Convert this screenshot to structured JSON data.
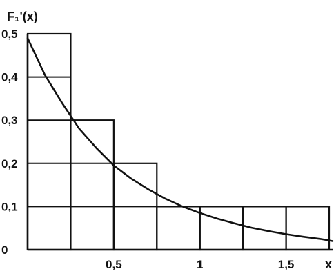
{
  "chart_data": {
    "type": "bar",
    "title": "",
    "ylabel": "F₁'(x)",
    "xlabel": "x",
    "xlim": [
      0,
      1.77
    ],
    "ylim": [
      0,
      0.5
    ],
    "x_ticks": [
      {
        "value": 0.5,
        "label": "0,5"
      },
      {
        "value": 1,
        "label": "1"
      },
      {
        "value": 1.5,
        "label": "1,5"
      }
    ],
    "y_ticks": [
      {
        "value": 0,
        "label": "0"
      },
      {
        "value": 0.1,
        "label": "0,1"
      },
      {
        "value": 0.2,
        "label": "0,2"
      },
      {
        "value": 0.3,
        "label": "0,3"
      },
      {
        "value": 0.4,
        "label": "0,4"
      },
      {
        "value": 0.5,
        "label": "0,5"
      }
    ],
    "bin_edges": [
      0,
      0.25,
      0.5,
      0.75,
      1.0,
      1.25,
      1.5,
      1.75
    ],
    "values": [
      0.5,
      0.3,
      0.2,
      0.1,
      0.1,
      0.1,
      0.1
    ],
    "curve": {
      "x": [
        0,
        0.1,
        0.2,
        0.3,
        0.4,
        0.5,
        0.6,
        0.7,
        0.8,
        0.9,
        1.0,
        1.1,
        1.2,
        1.3,
        1.4,
        1.5,
        1.6,
        1.7,
        1.77
      ],
      "y": [
        0.49,
        0.405,
        0.34,
        0.28,
        0.235,
        0.195,
        0.165,
        0.14,
        0.118,
        0.1,
        0.085,
        0.072,
        0.061,
        0.051,
        0.043,
        0.036,
        0.03,
        0.025,
        0.02
      ]
    },
    "grid": true
  }
}
